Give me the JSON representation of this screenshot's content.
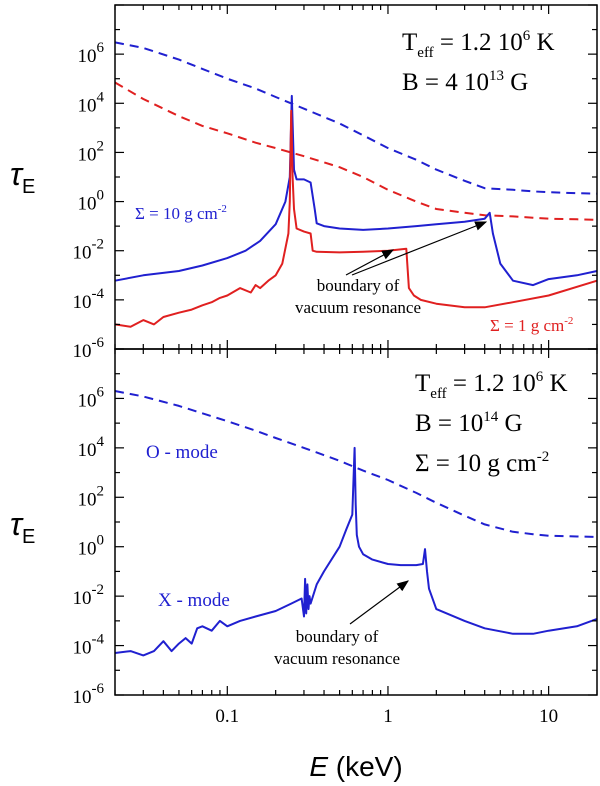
{
  "chart_data": [
    {
      "type": "line",
      "panel": "top",
      "xlabel_italic": "E",
      "xlabel_unit": "(keV)",
      "ylabel": "τ",
      "ylabel_sub": "E",
      "xscale": "log",
      "yscale": "log",
      "xlim": [
        0.02,
        20
      ],
      "ylim": [
        1e-06,
        100000000.0
      ],
      "x_ticks": [
        "0.1",
        "1",
        "10"
      ],
      "y_ticks": [
        {
          "base": "10",
          "exp": "-6",
          "value": 1e-06
        },
        {
          "base": "10",
          "exp": "-4",
          "value": 0.0001
        },
        {
          "base": "10",
          "exp": "-2",
          "value": 0.01
        },
        {
          "base": "10",
          "exp": "0",
          "value": 1
        },
        {
          "base": "10",
          "exp": "2",
          "value": 100.0
        },
        {
          "base": "10",
          "exp": "4",
          "value": 10000.0
        },
        {
          "base": "10",
          "exp": "6",
          "value": 1000000.0
        }
      ],
      "params": {
        "teff_prefix": "T",
        "teff_sub": "eff",
        "teff_value": " = 1.2 10",
        "teff_exp": "6",
        "teff_unit": " K",
        "b_value": "B = 4 10",
        "b_exp": "13",
        "b_unit": " G"
      },
      "series": [
        {
          "name": "Σ = 10 g cm-2 O-mode (dashed)",
          "color": "#2020d0",
          "dash": true,
          "x": [
            0.02,
            0.03,
            0.05,
            0.07,
            0.1,
            0.15,
            0.2,
            0.3,
            0.5,
            0.7,
            1,
            1.5,
            2,
            3,
            4,
            6,
            8,
            10,
            15,
            20
          ],
          "y": [
            3000000.0,
            1800000.0,
            600000.0,
            250000.0,
            100000.0,
            40000.0,
            18000.0,
            6000.0,
            1500.0,
            500,
            150,
            50,
            20,
            7,
            3.5,
            3,
            2.6,
            2.4,
            2.2,
            2.1
          ]
        },
        {
          "name": "Σ = 1 g cm-2 O-mode (dashed)",
          "color": "#e02020",
          "dash": true,
          "x": [
            0.02,
            0.03,
            0.05,
            0.07,
            0.1,
            0.15,
            0.2,
            0.3,
            0.5,
            0.7,
            1,
            1.5,
            2,
            3,
            4,
            6,
            8,
            10,
            15,
            20
          ],
          "y": [
            70000.0,
            15000.0,
            3000.0,
            1200.0,
            600,
            250,
            150,
            70,
            25,
            10,
            3,
            1,
            0.5,
            0.35,
            0.28,
            0.25,
            0.22,
            0.2,
            0.19,
            0.18
          ]
        },
        {
          "name": "Σ = 10 g cm-2 X-mode",
          "color": "#2020d0",
          "dash": false,
          "x": [
            0.02,
            0.03,
            0.05,
            0.07,
            0.1,
            0.13,
            0.16,
            0.2,
            0.23,
            0.245,
            0.252,
            0.26,
            0.27,
            0.3,
            0.33,
            0.35,
            0.36,
            0.4,
            0.5,
            0.7,
            1,
            1.5,
            2,
            3,
            4,
            4.3,
            4.5,
            5,
            6,
            8,
            10,
            15,
            20
          ],
          "y": [
            0.0006,
            0.001,
            0.0015,
            0.0025,
            0.005,
            0.01,
            0.025,
            0.12,
            1,
            10,
            20000.0,
            20,
            8,
            8,
            6,
            0.5,
            0.13,
            0.1,
            0.08,
            0.07,
            0.08,
            0.1,
            0.12,
            0.15,
            0.2,
            0.35,
            0.05,
            0.003,
            0.0006,
            0.0004,
            0.0007,
            0.001,
            0.0015
          ]
        },
        {
          "name": "Σ = 1 g cm-2 X-mode",
          "color": "#e02020",
          "dash": false,
          "x": [
            0.02,
            0.025,
            0.03,
            0.035,
            0.04,
            0.05,
            0.06,
            0.07,
            0.08,
            0.09,
            0.1,
            0.12,
            0.14,
            0.15,
            0.16,
            0.18,
            0.2,
            0.22,
            0.24,
            0.245,
            0.25,
            0.255,
            0.26,
            0.27,
            0.3,
            0.33,
            0.34,
            0.36,
            0.5,
            0.7,
            1,
            1.3,
            1.35,
            1.45,
            1.6,
            2,
            3,
            4,
            6,
            10,
            20
          ],
          "y": [
            1e-05,
            8e-06,
            1.5e-05,
            1e-05,
            2e-05,
            3e-05,
            4e-05,
            6e-05,
            8e-05,
            0.00012,
            0.00015,
            0.0003,
            0.0002,
            0.0004,
            0.0003,
            0.0006,
            0.001,
            0.003,
            0.05,
            1,
            5000.0,
            10,
            0.5,
            0.08,
            0.06,
            0.05,
            0.01,
            0.009,
            0.0085,
            0.009,
            0.01,
            0.012,
            0.0003,
            0.00015,
            0.0001,
            7e-05,
            5e-05,
            5e-05,
            8e-05,
            0.00015,
            0.0006
          ]
        }
      ],
      "labels": {
        "sigma10_main": "Σ = 10 g cm",
        "sigma10_exp": "-2",
        "sigma1_main": "Σ = 1 g cm",
        "sigma1_exp": "-2",
        "boundary_line1": "boundary of",
        "boundary_line2": "vacuum resonance"
      }
    },
    {
      "type": "line",
      "panel": "bottom",
      "xscale": "log",
      "yscale": "log",
      "xlim": [
        0.02,
        20
      ],
      "ylim": [
        1e-06,
        100000000.0
      ],
      "params": {
        "teff_prefix": "T",
        "teff_sub": "eff",
        "teff_value": " = 1.2 10",
        "teff_exp": "6",
        "teff_unit": " K",
        "b_value": "B = 10",
        "b_exp": "14",
        "b_unit": " G",
        "sigma_value": "Σ = 10 g cm",
        "sigma_exp": "-2"
      },
      "series": [
        {
          "name": "O - mode",
          "color": "#2020d0",
          "dash": true,
          "x": [
            0.02,
            0.03,
            0.05,
            0.07,
            0.1,
            0.15,
            0.2,
            0.3,
            0.5,
            0.7,
            1,
            1.5,
            2,
            3,
            4,
            6,
            8,
            10,
            15,
            20
          ],
          "y": [
            2000000.0,
            1200000.0,
            500000.0,
            250000.0,
            120000.0,
            50000.0,
            25000.0,
            10000.0,
            3000.0,
            1200.0,
            500,
            150,
            60,
            18,
            8,
            4,
            3.2,
            2.8,
            2.6,
            2.5
          ]
        },
        {
          "name": "X - mode",
          "color": "#2020d0",
          "dash": false,
          "x": [
            0.02,
            0.025,
            0.03,
            0.035,
            0.04,
            0.045,
            0.05,
            0.055,
            0.06,
            0.065,
            0.07,
            0.08,
            0.09,
            0.1,
            0.12,
            0.15,
            0.2,
            0.25,
            0.29,
            0.3,
            0.305,
            0.31,
            0.315,
            0.32,
            0.325,
            0.33,
            0.36,
            0.4,
            0.5,
            0.55,
            0.6,
            0.62,
            0.63,
            0.64,
            0.66,
            0.7,
            0.8,
            1,
            1.2,
            1.5,
            1.65,
            1.7,
            1.75,
            1.8,
            2,
            3,
            4,
            6,
            8,
            10,
            15,
            20
          ],
          "y": [
            5e-05,
            6e-05,
            4e-05,
            6e-05,
            0.00015,
            6e-05,
            0.00012,
            0.0002,
            0.00012,
            0.0005,
            0.0006,
            0.0004,
            0.001,
            0.0006,
            0.001,
            0.0015,
            0.0025,
            0.005,
            0.008,
            0.0015,
            0.05,
            0.002,
            0.03,
            0.003,
            0.01,
            0.005,
            0.03,
            0.1,
            1,
            5,
            20,
            10000.0,
            50,
            3,
            1,
            0.5,
            0.3,
            0.2,
            0.18,
            0.18,
            0.2,
            0.8,
            0.1,
            0.02,
            0.003,
            0.001,
            0.0005,
            0.0003,
            0.0003,
            0.0004,
            0.0006,
            0.0012
          ]
        }
      ],
      "labels": {
        "o_mode": "O - mode",
        "x_mode": "X - mode",
        "boundary_line1": "boundary of",
        "boundary_line2": "vacuum resonance"
      }
    }
  ]
}
